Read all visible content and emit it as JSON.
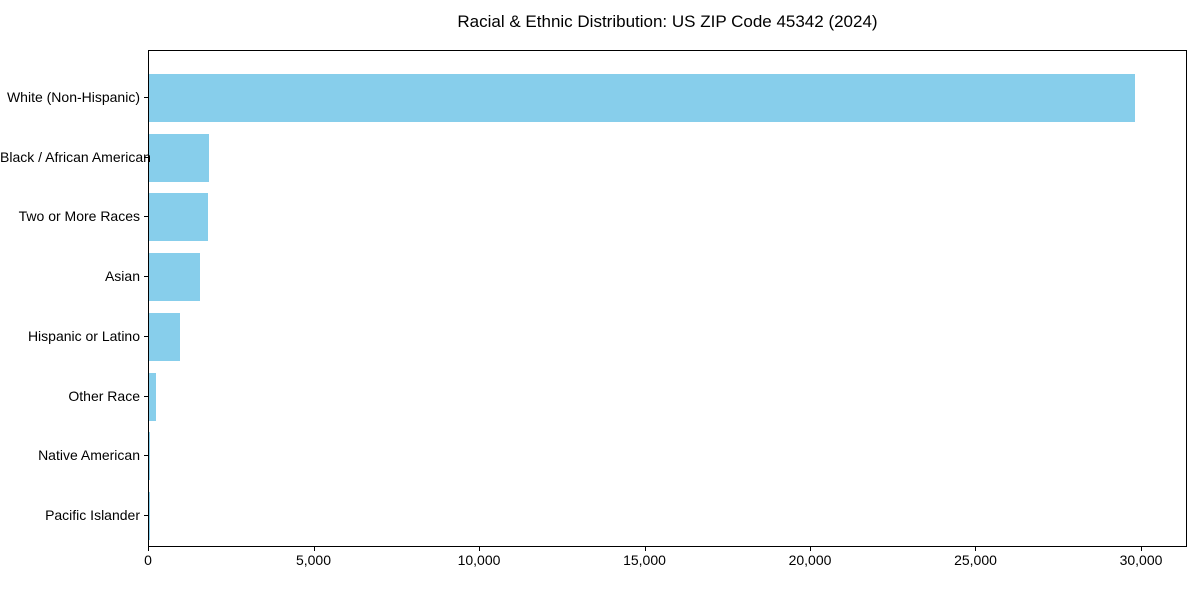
{
  "figure": {
    "background_color": "#ffffff",
    "text_color": "#000000",
    "spine_color": "#000000"
  },
  "chart_data": {
    "type": "bar",
    "orientation": "horizontal",
    "title": "Racial & Ethnic Distribution: US ZIP Code 45342 (2024)",
    "categories": [
      "White (Non-Hispanic)",
      "Black / African American",
      "Two or More Races",
      "Asian",
      "Hispanic or Latino",
      "Other Race",
      "Native American",
      "Pacific Islander"
    ],
    "values": [
      29800,
      1810,
      1780,
      1540,
      940,
      200,
      45,
      10
    ],
    "xlabel": "",
    "ylabel": "",
    "xlim": [
      0,
      31400
    ],
    "xticks": [
      0,
      5000,
      10000,
      15000,
      20000,
      25000,
      30000
    ],
    "xtick_labels": [
      "0",
      "5,000",
      "10,000",
      "15,000",
      "20,000",
      "25,000",
      "30,000"
    ],
    "bar_color": "#87CEEB",
    "grid": false,
    "legend": "none"
  }
}
